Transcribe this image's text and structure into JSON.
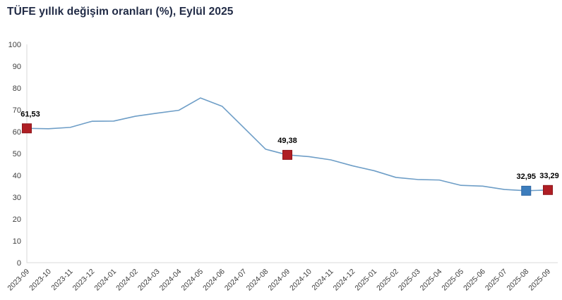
{
  "title": "TÜFE yıllık değişim oranları (%), Eylül 2025",
  "colors": {
    "background": "#ffffff",
    "title_text": "#212b46",
    "line": "#6e9ec7",
    "axis": "#d9d9d9",
    "tick_text": "#404040",
    "data_label_text": "#000000",
    "marker_red": "#af1e24",
    "marker_red_border": "#8e161b",
    "marker_blue": "#3c7dbd",
    "marker_blue_border": "#2f67a3"
  },
  "chart_data": {
    "type": "line",
    "title": "TÜFE yıllık değişim oranları (%), Eylül 2025",
    "xlabel": "",
    "ylabel": "",
    "ylim": [
      0,
      100
    ],
    "y_ticks": [
      0,
      10,
      20,
      30,
      40,
      50,
      60,
      70,
      80,
      90,
      100
    ],
    "grid": false,
    "legend_position": "none",
    "categories": [
      "2023-09",
      "2023-10",
      "2023-11",
      "2023-12",
      "2024-01",
      "2024-02",
      "2024-03",
      "2024-04",
      "2024-05",
      "2024-06",
      "2024-07",
      "2024-08",
      "2024-09",
      "2024-10",
      "2024-11",
      "2024-12",
      "2025-01",
      "2025-02",
      "2025-03",
      "2025-04",
      "2025-05",
      "2025-06",
      "2025-07",
      "2025-08",
      "2025-09"
    ],
    "values": [
      61.53,
      61.36,
      61.98,
      64.77,
      64.86,
      67.07,
      68.5,
      69.8,
      75.45,
      71.6,
      61.78,
      51.97,
      49.38,
      48.58,
      47.09,
      44.38,
      42.12,
      39.05,
      38.1,
      37.86,
      35.41,
      35.05,
      33.52,
      32.95,
      33.29
    ],
    "highlighted_points": [
      {
        "index": 0,
        "category": "2023-09",
        "value": 61.53,
        "label": "61,53",
        "marker": "red",
        "label_dx": 5
      },
      {
        "index": 12,
        "category": "2024-09",
        "value": 49.38,
        "label": "49,38",
        "marker": "red",
        "label_dx": 0
      },
      {
        "index": 23,
        "category": "2025-08",
        "value": 32.95,
        "label": "32,95",
        "marker": "blue",
        "label_dx": 0
      },
      {
        "index": 24,
        "category": "2025-09",
        "value": 33.29,
        "label": "33,29",
        "marker": "red",
        "label_dx": 2
      }
    ]
  }
}
